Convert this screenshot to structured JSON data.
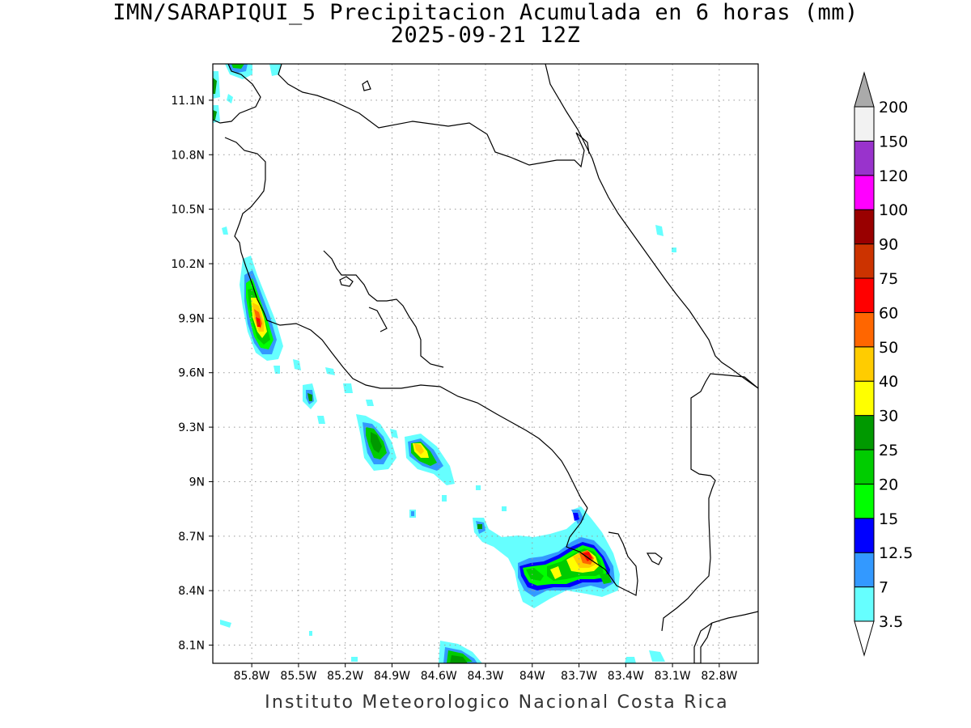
{
  "title": {
    "line1": "IMN/SARAPIQUI_5 Precipitacion Acumulada en 6 horas (mm)",
    "line2": "2025-09-21 12Z"
  },
  "footer": "Instituto Meteorologico Nacional Costa Rica",
  "map": {
    "lon_range": [
      -86.05,
      -82.55
    ],
    "lat_range": [
      8.0,
      11.3
    ],
    "lat_ticks": [
      {
        "value": 11.1,
        "label": "11.1N"
      },
      {
        "value": 10.8,
        "label": "10.8N"
      },
      {
        "value": 10.5,
        "label": "10.5N"
      },
      {
        "value": 10.2,
        "label": "10.2N"
      },
      {
        "value": 9.9,
        "label": "9.9N"
      },
      {
        "value": 9.6,
        "label": "9.6N"
      },
      {
        "value": 9.3,
        "label": "9.3N"
      },
      {
        "value": 9.0,
        "label": "9N"
      },
      {
        "value": 8.7,
        "label": "8.7N"
      },
      {
        "value": 8.4,
        "label": "8.4N"
      },
      {
        "value": 8.1,
        "label": "8.1N"
      }
    ],
    "lon_ticks": [
      {
        "value": -85.8,
        "label": "85.8W"
      },
      {
        "value": -85.5,
        "label": "85.5W"
      },
      {
        "value": -85.2,
        "label": "85.2W"
      },
      {
        "value": -84.9,
        "label": "84.9W"
      },
      {
        "value": -84.6,
        "label": "84.6W"
      },
      {
        "value": -84.3,
        "label": "84.3W"
      },
      {
        "value": -84.0,
        "label": "84W"
      },
      {
        "value": -83.7,
        "label": "83.7W"
      },
      {
        "value": -83.4,
        "label": "83.4W"
      },
      {
        "value": -83.1,
        "label": "83.1W"
      },
      {
        "value": -82.8,
        "label": "82.8W"
      }
    ],
    "grid": "dotted"
  },
  "colorbar": {
    "levels": [
      {
        "label": "3.5",
        "color": "#FFFFFF"
      },
      {
        "label": "7",
        "color": "#66FFFF"
      },
      {
        "label": "12.5",
        "color": "#3399FF"
      },
      {
        "label": "15",
        "color": "#0000FF"
      },
      {
        "label": "20",
        "color": "#00FF00"
      },
      {
        "label": "25",
        "color": "#00CC00"
      },
      {
        "label": "30",
        "color": "#009900"
      },
      {
        "label": "40",
        "color": "#FFFF00"
      },
      {
        "label": "50",
        "color": "#FFCC00"
      },
      {
        "label": "60",
        "color": "#FF6600"
      },
      {
        "label": "75",
        "color": "#FF0000"
      },
      {
        "label": "90",
        "color": "#CC3300"
      },
      {
        "label": "100",
        "color": "#990000"
      },
      {
        "label": "120",
        "color": "#FF00FF"
      },
      {
        "label": "150",
        "color": "#9933CC"
      },
      {
        "label": "200",
        "color": "#F2F2F2"
      }
    ],
    "over_color": "#AAAAAA",
    "under_color": "#FFFFFF"
  }
}
